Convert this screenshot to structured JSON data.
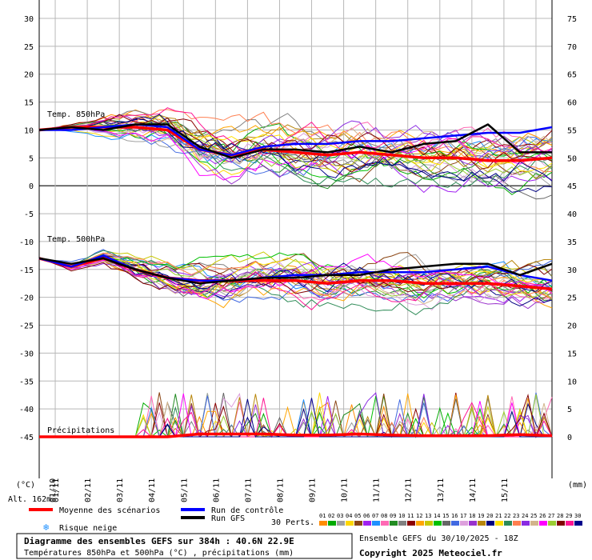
{
  "chart_data": {
    "type": "line",
    "title": "Diagramme des ensembles GEFS sur 384h : 40.6N 22.9E",
    "subtitle": "Températures 850hPa et 500hPa (°C) , précipitations (mm)",
    "left_axis": {
      "unit": "(°C)",
      "ylim": [
        -45,
        30
      ],
      "ticks": [
        30,
        25,
        20,
        15,
        10,
        5,
        0,
        -5,
        -10,
        -15,
        -20,
        -25,
        -30,
        -35,
        -40,
        -45
      ]
    },
    "right_axis": {
      "unit": "(mm)",
      "ylim": [
        0,
        75
      ],
      "ticks": [
        75,
        70,
        65,
        60,
        55,
        50,
        45,
        40,
        35,
        30,
        25,
        20,
        15,
        10,
        5,
        0
      ]
    },
    "altitude_label": "Alt. 162m",
    "x_dates": [
      "01/10",
      "01/11",
      "02/11",
      "03/11",
      "04/11",
      "05/11",
      "06/11",
      "07/11",
      "08/11",
      "09/11",
      "10/11",
      "11/11",
      "12/11",
      "13/11",
      "14/11",
      "15/11"
    ],
    "panel_labels": {
      "t850": "Temp. 850hPa",
      "t500": "Temp. 500hPa",
      "precip": "Précipitations"
    },
    "series": [
      {
        "name": "Moyenne des scénarios",
        "panel": "t850",
        "color": "#ff0000",
        "x_hours": [
          0,
          24,
          48,
          72,
          96,
          120,
          144,
          168,
          192,
          216,
          240,
          264,
          288,
          312,
          336,
          360,
          384
        ],
        "values": [
          10,
          10.5,
          10.5,
          10.5,
          10,
          6.5,
          5.5,
          6.5,
          6,
          5.5,
          6,
          5.5,
          5,
          5,
          4.5,
          4.5,
          5
        ]
      },
      {
        "name": "Run de contrôle",
        "panel": "t850",
        "color": "#0000ff",
        "x_hours": [
          0,
          24,
          48,
          72,
          96,
          120,
          144,
          168,
          192,
          216,
          240,
          264,
          288,
          312,
          336,
          360,
          384
        ],
        "values": [
          10,
          10,
          10.5,
          11,
          10.5,
          6.5,
          5.5,
          7,
          7.5,
          7.5,
          8,
          8,
          8.5,
          9,
          9.5,
          9.5,
          10.5
        ]
      },
      {
        "name": "Run GFS",
        "panel": "t850",
        "color": "#000000",
        "x_hours": [
          0,
          24,
          48,
          72,
          96,
          120,
          144,
          168,
          192,
          216,
          240,
          264,
          288,
          312,
          336,
          360,
          384
        ],
        "values": [
          10,
          10.5,
          10,
          11,
          11,
          7,
          5,
          6.5,
          6.5,
          6,
          7,
          6,
          7.5,
          8,
          11,
          6,
          6
        ]
      },
      {
        "name": "Moyenne des scénarios",
        "panel": "t500",
        "color": "#ff0000",
        "x_hours": [
          0,
          24,
          48,
          72,
          96,
          120,
          144,
          168,
          192,
          216,
          240,
          264,
          288,
          312,
          336,
          360,
          384
        ],
        "values": [
          -13,
          -14.5,
          -13,
          -15,
          -16.5,
          -17,
          -17,
          -17,
          -17,
          -17.5,
          -17,
          -17,
          -17.5,
          -17.5,
          -17.5,
          -18,
          -18.5
        ]
      },
      {
        "name": "Run de contrôle",
        "panel": "t500",
        "color": "#0000ff",
        "x_hours": [
          0,
          24,
          48,
          72,
          96,
          120,
          144,
          168,
          192,
          216,
          240,
          264,
          288,
          312,
          336,
          360,
          384
        ],
        "values": [
          -13,
          -14.5,
          -12.5,
          -15,
          -16.5,
          -17,
          -17,
          -16.5,
          -16,
          -16,
          -15.5,
          -15.5,
          -15.5,
          -15,
          -14.5,
          -16,
          -17
        ]
      },
      {
        "name": "Run GFS",
        "panel": "t500",
        "color": "#000000",
        "x_hours": [
          0,
          24,
          48,
          72,
          96,
          120,
          144,
          168,
          192,
          216,
          240,
          264,
          288,
          312,
          336,
          360,
          384
        ],
        "values": [
          -13,
          -14,
          -13,
          -15,
          -16.5,
          -17.5,
          -17,
          -16.5,
          -16.5,
          -16,
          -16,
          -15,
          -14.5,
          -14,
          -14,
          -16,
          -14
        ]
      },
      {
        "name": "Moyenne des scénarios",
        "panel": "precip",
        "color": "#ff0000",
        "x_hours": [
          0,
          24,
          48,
          72,
          96,
          120,
          144,
          168,
          192,
          216,
          240,
          264,
          288,
          312,
          336,
          360,
          384
        ],
        "values": [
          0,
          0,
          0,
          0,
          0,
          0.5,
          0.5,
          0.5,
          0.3,
          0.3,
          0.5,
          0.3,
          0.2,
          0.2,
          0.2,
          0.4,
          0.2
        ]
      }
    ],
    "legend": {
      "mean": "Moyenne des scénarios",
      "control": "Run de contrôle",
      "gfs": "Run GFS",
      "snow": "Risque neige",
      "perts_label": "30 Perts.",
      "perts_numbers": [
        "01",
        "02",
        "03",
        "04",
        "05",
        "06",
        "07",
        "08",
        "09",
        "10",
        "11",
        "12",
        "13",
        "14",
        "15",
        "16",
        "17",
        "18",
        "19",
        "20",
        "21",
        "22",
        "23",
        "24",
        "25",
        "26",
        "27",
        "28",
        "29",
        "30"
      ],
      "perts_colors": [
        "#ff8c00",
        "#00aa00",
        "#a0a0a0",
        "#ffd700",
        "#8b4513",
        "#a020f0",
        "#1e90ff",
        "#ff69b4",
        "#228b22",
        "#808080",
        "#8b0000",
        "#ffa500",
        "#c8c800",
        "#00c000",
        "#666666",
        "#4169e1",
        "#dda0dd",
        "#9932cc",
        "#b8860b",
        "#000080",
        "#ffe000",
        "#2e8b57",
        "#ff7f50",
        "#8a2be2",
        "#d2b48c",
        "#ff00ff",
        "#9acd32",
        "#800000",
        "#ff1493",
        "#00008b"
      ]
    },
    "footer": {
      "title": "Diagramme des ensembles GEFS sur 384h : 40.6N 22.9E",
      "subtitle": "Températures 850hPa et 500hPa (°C) , précipitations (mm)",
      "ensemble": "Ensemble GEFS du 30/10/2025 - 18Z",
      "copyright": "Copyright 2025 Meteociel.fr"
    },
    "grid": true
  }
}
